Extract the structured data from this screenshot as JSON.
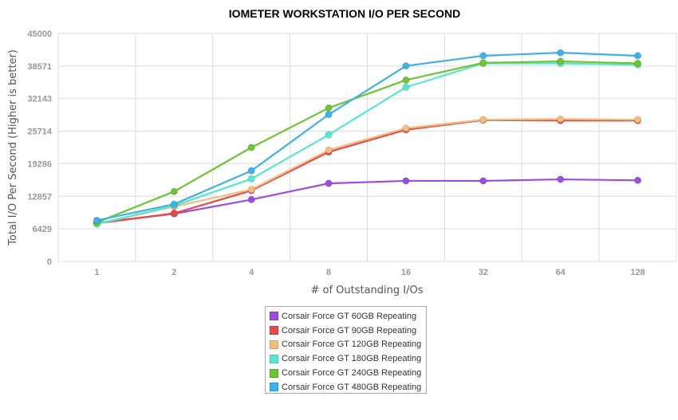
{
  "chart_data": {
    "type": "line",
    "title": "IOMETER WORKSTATION I/O PER SECOND",
    "xlabel": "# of Outstanding I/Os",
    "ylabel": "Total I/O Per Second (Higher is better)",
    "categories": [
      "1",
      "2",
      "4",
      "8",
      "16",
      "32",
      "64",
      "128"
    ],
    "yticks": [
      "0",
      "6429",
      "12857",
      "19286",
      "25714",
      "32143",
      "38571",
      "45000"
    ],
    "ylim": [
      0,
      45000
    ],
    "grid": true,
    "legend_position": "bottom",
    "series": [
      {
        "name": "Corsair Force GT 60GB Repeating",
        "color": "#9b4de0",
        "values": [
          7600,
          9400,
          12200,
          15400,
          15900,
          15900,
          16200,
          16000
        ]
      },
      {
        "name": "Corsair Force GT 90GB Repeating",
        "color": "#e8494a",
        "values": [
          7500,
          9500,
          14000,
          21600,
          26000,
          27900,
          27800,
          27800
        ]
      },
      {
        "name": "Corsair Force GT 120GB Repeating",
        "color": "#f2bf7e",
        "values": [
          7400,
          10800,
          14200,
          22000,
          26300,
          28000,
          28100,
          28000
        ]
      },
      {
        "name": "Corsair Force GT 180GB Repeating",
        "color": "#55e8d0",
        "values": [
          7400,
          11000,
          16300,
          25000,
          34400,
          39100,
          39100,
          38800
        ]
      },
      {
        "name": "Corsair Force GT 240GB Repeating",
        "color": "#6cc531",
        "values": [
          7700,
          13800,
          22500,
          30300,
          35800,
          39200,
          39500,
          39100
        ]
      },
      {
        "name": "Corsair Force GT 480GB Repeating",
        "color": "#3fb0e8",
        "values": [
          8100,
          11300,
          17900,
          29000,
          38600,
          40600,
          41200,
          40600
        ]
      }
    ]
  }
}
